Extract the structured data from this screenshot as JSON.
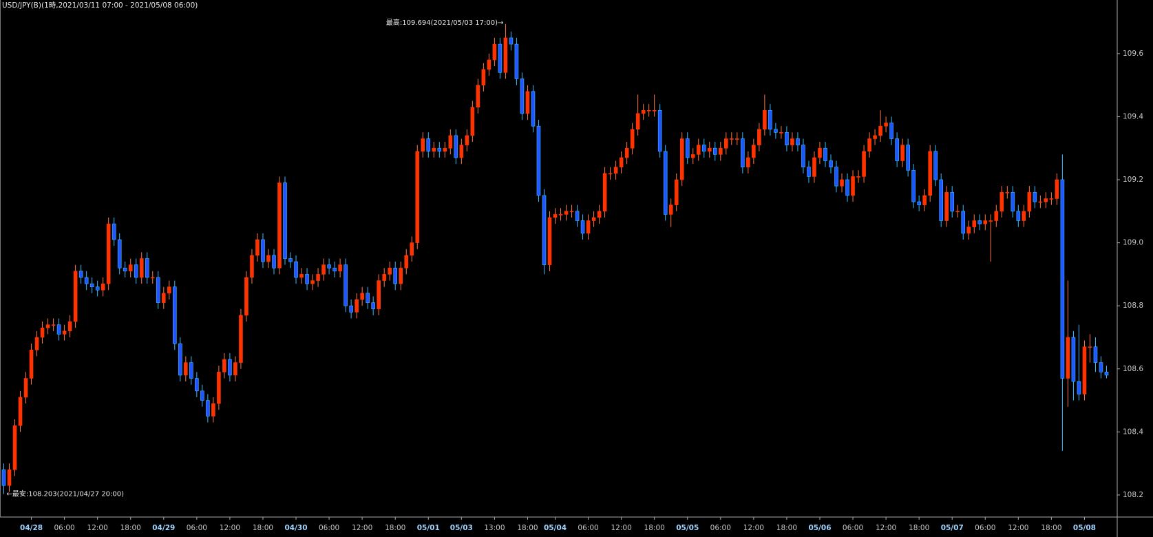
{
  "chart_data": {
    "type": "candlestick",
    "title": "USD/JPY(B)(1時,2021/03/11 07:00 - 2021/05/08 06:00)",
    "annotations": [
      "最高:109.694(2021/05/03 17:00)→",
      "←最安:108.203(2021/04/27 20:00)"
    ],
    "up_color": "#ff3300",
    "down_color": "#2255ff",
    "up_wick_color": "#ff7744",
    "down_wick_color": "#33bbff",
    "ylim": [
      108.13,
      109.77
    ],
    "yticks": [
      108.2,
      108.4,
      108.6,
      108.8,
      {
        "value": 109,
        "label": "109.0"
      },
      109.2,
      109.4,
      109.6
    ],
    "categories": [
      null,
      null,
      null,
      null,
      null,
      "04/28",
      null,
      null,
      null,
      null,
      null,
      "06:00",
      null,
      null,
      null,
      null,
      null,
      "12:00",
      null,
      null,
      null,
      null,
      null,
      "18:00",
      null,
      null,
      null,
      null,
      null,
      "04/29",
      null,
      null,
      null,
      null,
      null,
      "06:00",
      null,
      null,
      null,
      null,
      null,
      "12:00",
      null,
      null,
      null,
      null,
      null,
      "18:00",
      null,
      null,
      null,
      null,
      null,
      "04/30",
      null,
      null,
      null,
      null,
      null,
      "06:00",
      null,
      null,
      null,
      null,
      null,
      "12:00",
      null,
      null,
      null,
      null,
      null,
      "18:00",
      null,
      null,
      null,
      null,
      null,
      "05/01",
      null,
      null,
      null,
      null,
      null,
      "05/03",
      null,
      null,
      null,
      null,
      null,
      "13:00",
      null,
      null,
      null,
      null,
      null,
      "18:00",
      null,
      null,
      null,
      null,
      "05/04",
      null,
      null,
      null,
      null,
      null,
      "06:00",
      null,
      null,
      null,
      null,
      null,
      "12:00",
      null,
      null,
      null,
      null,
      null,
      "18:00",
      null,
      null,
      null,
      null,
      null,
      "05/05",
      null,
      null,
      null,
      null,
      null,
      "06:00",
      null,
      null,
      null,
      null,
      null,
      "12:00",
      null,
      null,
      null,
      null,
      null,
      "18:00",
      null,
      null,
      null,
      null,
      null,
      "05/06",
      null,
      null,
      null,
      null,
      null,
      "06:00",
      null,
      null,
      null,
      null,
      null,
      "12:00",
      null,
      null,
      null,
      null,
      null,
      "18:00",
      null,
      null,
      null,
      null,
      null,
      "05/07",
      null,
      null,
      null,
      null,
      null,
      "06:00",
      null,
      null,
      null,
      null,
      null,
      "12:00",
      null,
      null,
      null,
      null,
      null,
      "18:00",
      null,
      null,
      null,
      null,
      null,
      "05/08",
      null,
      null,
      null,
      null
    ],
    "open": [
      108.28,
      108.23,
      108.28,
      108.42,
      108.51,
      108.57,
      108.66,
      108.7,
      108.73,
      108.74,
      108.74,
      108.71,
      108.72,
      108.75,
      108.91,
      108.89,
      108.87,
      108.86,
      108.85,
      108.87,
      109.06,
      109.01,
      108.92,
      108.91,
      108.93,
      108.89,
      108.95,
      108.89,
      108.89,
      108.81,
      108.84,
      108.86,
      108.68,
      108.58,
      108.62,
      108.57,
      108.53,
      108.5,
      108.45,
      108.49,
      108.59,
      108.63,
      108.58,
      108.62,
      108.77,
      108.89,
      108.96,
      109.01,
      108.94,
      108.96,
      108.92,
      109.19,
      108.95,
      108.94,
      108.89,
      108.9,
      108.87,
      108.88,
      108.9,
      108.93,
      108.92,
      108.91,
      108.93,
      108.8,
      108.78,
      108.82,
      108.84,
      108.81,
      108.79,
      108.88,
      108.9,
      108.92,
      108.87,
      108.92,
      108.96,
      109.0,
      109.29,
      109.33,
      109.29,
      109.3,
      109.29,
      109.3,
      109.34,
      109.27,
      109.31,
      109.34,
      109.43,
      109.5,
      109.55,
      109.58,
      109.63,
      109.54,
      109.65,
      109.63,
      109.52,
      109.41,
      109.48,
      109.37,
      109.15,
      108.93,
      109.08,
      109.09,
      109.09,
      109.1,
      109.1,
      109.07,
      109.03,
      109.07,
      109.08,
      109.1,
      109.22,
      109.22,
      109.24,
      109.27,
      109.3,
      109.36,
      109.41,
      109.42,
      109.42,
      109.42,
      109.29,
      109.09,
      109.12,
      109.2,
      109.33,
      109.27,
      109.28,
      109.31,
      109.29,
      109.3,
      109.28,
      109.3,
      109.33,
      109.33,
      109.33,
      109.24,
      109.27,
      109.31,
      109.36,
      109.42,
      109.36,
      109.35,
      109.35,
      109.31,
      109.33,
      109.31,
      109.24,
      109.21,
      109.27,
      109.3,
      109.26,
      109.24,
      109.18,
      109.2,
      109.15,
      109.21,
      109.21,
      109.29,
      109.33,
      109.34,
      109.37,
      109.38,
      109.33,
      109.26,
      109.31,
      109.23,
      109.13,
      109.12,
      109.15,
      109.29,
      109.2,
      109.07,
      109.16,
      109.1,
      109.1,
      109.03,
      109.05,
      109.07,
      109.06,
      109.07,
      109.07,
      109.1,
      109.16,
      109.16,
      109.1,
      109.07,
      109.1,
      109.16,
      109.13,
      109.13,
      109.14,
      109.14,
      109.2,
      108.57,
      108.7,
      108.56,
      108.52,
      108.67,
      108.67,
      108.62,
      108.59
    ],
    "high": [
      108.3,
      108.3,
      108.44,
      108.53,
      108.59,
      108.68,
      108.72,
      108.75,
      108.76,
      108.76,
      108.76,
      108.74,
      108.77,
      108.93,
      108.93,
      108.91,
      108.89,
      108.88,
      108.89,
      109.08,
      109.08,
      109.03,
      108.94,
      108.95,
      108.95,
      108.97,
      108.97,
      108.91,
      108.91,
      108.86,
      108.88,
      108.88,
      108.7,
      108.64,
      108.64,
      108.59,
      108.55,
      108.52,
      108.51,
      108.61,
      108.65,
      108.65,
      108.64,
      108.79,
      108.91,
      108.98,
      109.03,
      109.03,
      108.98,
      108.98,
      109.21,
      109.21,
      108.97,
      108.96,
      108.92,
      108.92,
      108.9,
      108.92,
      108.95,
      108.95,
      108.94,
      108.95,
      108.95,
      108.82,
      108.84,
      108.86,
      108.86,
      108.83,
      108.9,
      108.92,
      108.94,
      108.94,
      108.94,
      108.98,
      109.02,
      109.31,
      109.35,
      109.35,
      109.32,
      109.32,
      109.32,
      109.36,
      109.36,
      109.33,
      109.36,
      109.45,
      109.52,
      109.57,
      109.6,
      109.65,
      109.65,
      109.694,
      109.67,
      109.65,
      109.54,
      109.5,
      109.5,
      109.39,
      109.17,
      109.1,
      109.11,
      109.11,
      109.12,
      109.12,
      109.12,
      109.09,
      109.09,
      109.1,
      109.12,
      109.24,
      109.24,
      109.26,
      109.29,
      109.32,
      109.38,
      109.47,
      109.44,
      109.44,
      109.47,
      109.44,
      109.31,
      109.14,
      109.22,
      109.35,
      109.35,
      109.3,
      109.33,
      109.33,
      109.32,
      109.32,
      109.32,
      109.35,
      109.35,
      109.35,
      109.35,
      109.29,
      109.33,
      109.38,
      109.47,
      109.44,
      109.38,
      109.37,
      109.37,
      109.35,
      109.35,
      109.33,
      109.26,
      109.29,
      109.32,
      109.32,
      109.28,
      109.26,
      109.22,
      109.22,
      109.23,
      109.23,
      109.31,
      109.35,
      109.36,
      109.42,
      109.4,
      109.4,
      109.35,
      109.33,
      109.33,
      109.25,
      109.15,
      109.17,
      109.31,
      109.31,
      109.22,
      109.18,
      109.18,
      109.12,
      109.12,
      109.07,
      109.09,
      109.09,
      109.09,
      109.09,
      109.12,
      109.18,
      109.18,
      109.18,
      109.12,
      109.12,
      109.18,
      109.18,
      109.15,
      109.16,
      109.16,
      109.22,
      109.28,
      108.88,
      108.72,
      108.74,
      108.69,
      108.71,
      108.7,
      108.64,
      108.61
    ],
    "low": [
      108.203,
      108.21,
      108.26,
      108.4,
      108.49,
      108.55,
      108.64,
      108.68,
      108.71,
      108.72,
      108.69,
      108.69,
      108.7,
      108.73,
      108.87,
      108.85,
      108.84,
      108.83,
      108.83,
      108.85,
      108.99,
      108.9,
      108.89,
      108.89,
      108.87,
      108.87,
      108.87,
      108.87,
      108.79,
      108.79,
      108.82,
      108.66,
      108.56,
      108.56,
      108.55,
      108.51,
      108.48,
      108.43,
      108.43,
      108.47,
      108.57,
      108.56,
      108.56,
      108.6,
      108.75,
      108.87,
      108.94,
      108.92,
      108.92,
      108.9,
      108.9,
      108.93,
      108.92,
      108.87,
      108.87,
      108.85,
      108.85,
      108.86,
      108.88,
      108.9,
      108.89,
      108.89,
      108.78,
      108.76,
      108.76,
      108.8,
      108.79,
      108.77,
      108.77,
      108.86,
      108.88,
      108.85,
      108.85,
      108.9,
      108.94,
      108.98,
      109.27,
      109.27,
      109.27,
      109.27,
      109.27,
      109.28,
      109.25,
      109.25,
      109.29,
      109.32,
      109.41,
      109.48,
      109.53,
      109.56,
      109.52,
      109.52,
      109.61,
      109.5,
      109.39,
      109.39,
      109.35,
      109.13,
      108.9,
      108.91,
      109.06,
      109.07,
      109.07,
      109.08,
      109.05,
      109.01,
      109.01,
      109.05,
      109.06,
      109.08,
      109.2,
      109.2,
      109.22,
      109.25,
      109.28,
      109.34,
      109.39,
      109.4,
      109.4,
      109.27,
      109.07,
      109.05,
      109.1,
      109.18,
      109.25,
      109.25,
      109.26,
      109.27,
      109.27,
      109.26,
      109.26,
      109.28,
      109.31,
      109.31,
      109.22,
      109.22,
      109.25,
      109.29,
      109.34,
      109.34,
      109.33,
      109.33,
      109.29,
      109.29,
      109.29,
      109.22,
      109.19,
      109.19,
      109.25,
      109.24,
      109.22,
      109.16,
      109.16,
      109.13,
      109.13,
      109.19,
      109.19,
      109.27,
      109.31,
      109.32,
      109.35,
      109.31,
      109.24,
      109.24,
      109.21,
      109.11,
      109.1,
      109.1,
      109.13,
      109.18,
      109.05,
      109.05,
      109.08,
      109.08,
      109.01,
      109.01,
      109.03,
      109.04,
      109.04,
      108.94,
      109.05,
      109.08,
      109.14,
      109.08,
      109.05,
      109.05,
      109.08,
      109.11,
      109.11,
      109.11,
      109.12,
      109.12,
      108.34,
      108.48,
      108.5,
      108.5,
      108.5,
      108.62,
      108.59,
      108.57,
      108.57
    ],
    "close": [
      108.23,
      108.28,
      108.42,
      108.51,
      108.57,
      108.66,
      108.7,
      108.73,
      108.74,
      108.74,
      108.71,
      108.72,
      108.75,
      108.91,
      108.89,
      108.87,
      108.86,
      108.85,
      108.87,
      109.06,
      109.01,
      108.92,
      108.91,
      108.93,
      108.89,
      108.95,
      108.89,
      108.89,
      108.81,
      108.84,
      108.86,
      108.68,
      108.58,
      108.62,
      108.57,
      108.53,
      108.5,
      108.45,
      108.49,
      108.59,
      108.63,
      108.58,
      108.62,
      108.77,
      108.89,
      108.96,
      109.01,
      108.94,
      108.96,
      108.92,
      109.19,
      108.95,
      108.94,
      108.89,
      108.9,
      108.87,
      108.88,
      108.9,
      108.93,
      108.92,
      108.91,
      108.93,
      108.8,
      108.78,
      108.82,
      108.84,
      108.81,
      108.79,
      108.88,
      108.9,
      108.92,
      108.87,
      108.92,
      108.96,
      109.0,
      109.29,
      109.33,
      109.29,
      109.3,
      109.29,
      109.3,
      109.34,
      109.27,
      109.31,
      109.34,
      109.43,
      109.5,
      109.55,
      109.58,
      109.63,
      109.54,
      109.65,
      109.63,
      109.52,
      109.41,
      109.48,
      109.37,
      109.15,
      108.93,
      109.08,
      109.09,
      109.09,
      109.1,
      109.1,
      109.07,
      109.03,
      109.07,
      109.08,
      109.1,
      109.22,
      109.22,
      109.24,
      109.27,
      109.3,
      109.36,
      109.41,
      109.42,
      109.42,
      109.42,
      109.29,
      109.09,
      109.12,
      109.2,
      109.33,
      109.27,
      109.28,
      109.31,
      109.29,
      109.3,
      109.28,
      109.3,
      109.33,
      109.33,
      109.33,
      109.24,
      109.27,
      109.31,
      109.36,
      109.42,
      109.36,
      109.35,
      109.35,
      109.31,
      109.33,
      109.31,
      109.24,
      109.21,
      109.27,
      109.3,
      109.26,
      109.24,
      109.18,
      109.2,
      109.15,
      109.21,
      109.21,
      109.29,
      109.33,
      109.34,
      109.37,
      109.38,
      109.33,
      109.26,
      109.31,
      109.23,
      109.13,
      109.12,
      109.15,
      109.29,
      109.2,
      109.07,
      109.16,
      109.1,
      109.1,
      109.03,
      109.05,
      109.07,
      109.06,
      109.07,
      109.07,
      109.1,
      109.16,
      109.16,
      109.1,
      109.07,
      109.1,
      109.16,
      109.13,
      109.13,
      109.14,
      109.14,
      109.2,
      108.57,
      108.7,
      108.56,
      108.52,
      108.67,
      108.67,
      108.62,
      108.59,
      108.58
    ]
  }
}
